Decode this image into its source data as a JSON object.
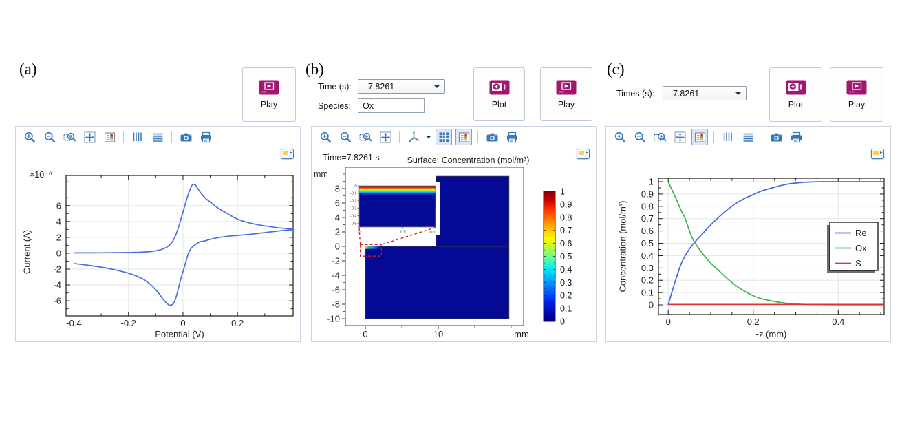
{
  "panels": {
    "a": {
      "label": "(a)",
      "play_button": "Play",
      "xlabel": "Potential (V)",
      "ylabel": "Current (A)",
      "y_multiplier": "×10⁻⁶",
      "toolbar": [
        "zoom-in",
        "zoom-out",
        "zoom-box",
        "zoom-extents",
        "color-legend",
        "x-grid",
        "y-grid",
        "image-snapshot",
        "print"
      ]
    },
    "b": {
      "label": "(b)",
      "time_label": "Time (s):",
      "time_value": "7.8261",
      "species_label": "Species:",
      "species_value": "Ox",
      "plot_button": "Plot",
      "play_button": "Play",
      "title_time": "Time=7.8261 s",
      "title_surface": "Surface: Concentration (mol/m³)",
      "unit_top": "mm",
      "toolbar": [
        "zoom-in",
        "zoom-out",
        "zoom-box",
        "zoom-extents",
        "default-3d-view",
        "grid",
        "color-legend",
        "image-snapshot",
        "print"
      ],
      "toolbar_selected": [
        "grid",
        "color-legend"
      ]
    },
    "c": {
      "label": "(c)",
      "times_label": "Times (s):",
      "times_value": "7.8261",
      "plot_button": "Plot",
      "play_button": "Play",
      "xlabel": "-z (mm)",
      "ylabel": "Concentration (mol/m³)",
      "toolbar": [
        "zoom-in",
        "zoom-out",
        "zoom-box",
        "zoom-extents",
        "color-legend",
        "x-grid",
        "y-grid",
        "image-snapshot",
        "print"
      ],
      "toolbar_selected": [
        "color-legend"
      ]
    }
  },
  "chart_data": [
    {
      "type": "line",
      "panel": "a",
      "title": "",
      "xlabel": "Potential (V)",
      "ylabel": "Current (A)",
      "y_scale_label": "×10⁻⁶",
      "xlim": [
        -0.429,
        0.404
      ],
      "ylim": [
        -7.9,
        9.8
      ],
      "xticks": [
        -0.4,
        -0.2,
        0,
        0.2
      ],
      "xminor": [
        -0.3,
        -0.1,
        0.1,
        0.3,
        0.4
      ],
      "yticks": [
        -6,
        -4,
        -2,
        0,
        2,
        4,
        6
      ],
      "yminor": [
        -7,
        -5,
        -3,
        -1,
        1,
        3,
        5,
        7,
        9
      ],
      "grid": true,
      "series": [
        {
          "name": "cyclic-voltammogram",
          "color": "#4b6fe0",
          "x": [
            -0.4,
            -0.35,
            -0.3,
            -0.25,
            -0.2,
            -0.16,
            -0.13,
            -0.11,
            -0.09,
            -0.075,
            -0.06,
            -0.05,
            -0.04,
            -0.03,
            -0.02,
            -0.01,
            0,
            0.01,
            0.02,
            0.028,
            0.035,
            0.045,
            0.055,
            0.07,
            0.085,
            0.1,
            0.12,
            0.14,
            0.16,
            0.18,
            0.2,
            0.23,
            0.26,
            0.29,
            0.32,
            0.35,
            0.38,
            0.404,
            0.404,
            0.37,
            0.34,
            0.3,
            0.26,
            0.22,
            0.19,
            0.16,
            0.13,
            0.1,
            0.08,
            0.063,
            0.05,
            0.04,
            0.03,
            0.02,
            0.01,
            0,
            -0.01,
            -0.02,
            -0.03,
            -0.038,
            -0.048,
            -0.06,
            -0.075,
            -0.09,
            -0.11,
            -0.13,
            -0.15,
            -0.18,
            -0.21,
            -0.25,
            -0.29,
            -0.33,
            -0.37,
            -0.4
          ],
          "y": [
            0.05,
            0.05,
            0.06,
            0.07,
            0.09,
            0.13,
            0.18,
            0.25,
            0.38,
            0.52,
            0.75,
            1.0,
            1.4,
            2.0,
            2.9,
            4.0,
            5.2,
            6.4,
            7.5,
            8.2,
            8.65,
            8.6,
            8.1,
            7.4,
            6.85,
            6.45,
            5.9,
            5.45,
            5.05,
            4.65,
            4.3,
            3.95,
            3.7,
            3.5,
            3.35,
            3.2,
            3.1,
            3.02,
            2.98,
            2.88,
            2.76,
            2.6,
            2.44,
            2.3,
            2.22,
            2.12,
            1.97,
            1.75,
            1.55,
            1.45,
            1.2,
            0.95,
            0.62,
            0,
            -1.15,
            -2.3,
            -3.5,
            -4.9,
            -6.0,
            -6.45,
            -6.55,
            -6.3,
            -5.7,
            -5.0,
            -4.25,
            -3.65,
            -3.2,
            -2.75,
            -2.42,
            -2.08,
            -1.82,
            -1.6,
            -1.42,
            -1.3
          ]
        }
      ]
    },
    {
      "type": "heatmap",
      "panel": "b",
      "title": "Surface: Concentration (mol/m³)",
      "time_annotation": "Time=7.8261 s",
      "unit": "mm",
      "xlim": [
        -2.74,
        21.7
      ],
      "ylim": [
        -10.95,
        10.95
      ],
      "xticks": [
        0,
        10
      ],
      "xminor": [
        5,
        15,
        20
      ],
      "yticks": [
        8,
        6,
        4,
        2,
        0,
        -2,
        -4,
        -6,
        -8,
        -10
      ],
      "yminor": [
        10,
        9,
        7,
        5,
        3,
        1,
        -1,
        -3,
        -5,
        -7,
        -9
      ],
      "domain_color": "#050a94",
      "domains": [
        {
          "x": [
            0,
            19.7
          ],
          "y": [
            -10,
            0
          ]
        },
        {
          "x": [
            9.7,
            19.7
          ],
          "y": [
            0,
            9.7
          ]
        }
      ],
      "boundary_layer": {
        "x": [
          0,
          2.1
        ],
        "y": [
          -0.35,
          0
        ],
        "stops": [
          [
            "#b8e46a",
            0
          ],
          [
            "#2fbf7f",
            0.2
          ],
          [
            "#1a7fd4",
            0.55
          ],
          [
            "#050a94",
            1
          ]
        ]
      },
      "inset": {
        "xlim": [
          0,
          0.87
        ],
        "ylim": [
          -0.55,
          0
        ],
        "xticks": [
          0,
          0.5
        ],
        "yticks": [
          0,
          -0.1,
          -0.2,
          -0.3,
          -0.4,
          -0.5
        ],
        "unit": "mm",
        "stops": [
          [
            "#7f0000",
            0
          ],
          [
            "#e80000",
            0.05
          ],
          [
            "#ff7300",
            0.1
          ],
          [
            "#ffd900",
            0.145
          ],
          [
            "#8dff3c",
            0.19
          ],
          [
            "#00ffd9",
            0.235
          ],
          [
            "#00a4ff",
            0.28
          ],
          [
            "#0033e0",
            0.33
          ],
          [
            "#050a94",
            0.4
          ],
          [
            "#050a94",
            1
          ]
        ]
      },
      "zoom_region": {
        "x": [
          -0.7,
          2.2
        ],
        "y": [
          -1.35,
          0.25
        ]
      },
      "colorbar": {
        "min": 0,
        "max": 1,
        "ticks": [
          1,
          0.9,
          0.8,
          0.7,
          0.6,
          0.5,
          0.4,
          0.3,
          0.2,
          0.1,
          0
        ],
        "stops": [
          [
            "#7f0000",
            0
          ],
          [
            "#ce0000",
            0.07
          ],
          [
            "#ff3b00",
            0.15
          ],
          [
            "#ff8400",
            0.23
          ],
          [
            "#ffc800",
            0.3
          ],
          [
            "#fff600",
            0.36
          ],
          [
            "#b4f63c",
            0.44
          ],
          [
            "#57fba7",
            0.52
          ],
          [
            "#00e8f0",
            0.6
          ],
          [
            "#00a6ff",
            0.68
          ],
          [
            "#0064ff",
            0.76
          ],
          [
            "#0024e4",
            0.85
          ],
          [
            "#0008b4",
            0.93
          ],
          [
            "#000080",
            1
          ]
        ]
      }
    },
    {
      "type": "line",
      "panel": "c",
      "xlabel": "-z (mm)",
      "ylabel": "Concentration (mol/m³)",
      "xlim": [
        -0.023,
        0.508
      ],
      "ylim": [
        -0.078,
        1.028
      ],
      "xticks": [
        0,
        0.2,
        0.4
      ],
      "xminor": [
        0.05,
        0.1,
        0.15,
        0.25,
        0.3,
        0.35,
        0.45,
        0.5
      ],
      "yticks": [
        0,
        0.1,
        0.2,
        0.3,
        0.4,
        0.5,
        0.6,
        0.7,
        0.8,
        0.9,
        1
      ],
      "yminor": [
        0.05,
        0.15,
        0.25,
        0.35,
        0.45,
        0.55,
        0.65,
        0.75,
        0.85,
        0.95
      ],
      "grid": true,
      "legend": {
        "position": "right",
        "entries": [
          "Re",
          "Ox",
          "S"
        ]
      },
      "series": [
        {
          "name": "Re",
          "color": "#4169e1",
          "x": [
            0,
            0.01,
            0.02,
            0.03,
            0.04,
            0.05,
            0.06,
            0.08,
            0.1,
            0.12,
            0.14,
            0.16,
            0.18,
            0.2,
            0.22,
            0.25,
            0.28,
            0.32,
            0.36,
            0.4,
            0.45,
            0.508
          ],
          "y": [
            0,
            0.12,
            0.23,
            0.33,
            0.4,
            0.455,
            0.5,
            0.575,
            0.65,
            0.715,
            0.775,
            0.825,
            0.865,
            0.895,
            0.925,
            0.955,
            0.98,
            0.995,
            1,
            1,
            1,
            1
          ]
        },
        {
          "name": "Ox",
          "color": "#3bb44a",
          "x": [
            0,
            0.01,
            0.02,
            0.03,
            0.04,
            0.05,
            0.06,
            0.08,
            0.1,
            0.12,
            0.14,
            0.16,
            0.18,
            0.2,
            0.22,
            0.25,
            0.28,
            0.32,
            0.36,
            0.4,
            0.45,
            0.508
          ],
          "y": [
            1,
            0.925,
            0.85,
            0.77,
            0.7,
            0.6,
            0.52,
            0.42,
            0.34,
            0.275,
            0.21,
            0.155,
            0.11,
            0.075,
            0.05,
            0.028,
            0.012,
            0.004,
            0.002,
            0.001,
            0.001,
            0.001
          ]
        },
        {
          "name": "S",
          "color": "#e03232",
          "x": [
            0,
            0.1,
            0.2,
            0.3,
            0.4,
            0.508
          ],
          "y": [
            0.004,
            0.004,
            0.004,
            0.004,
            0.004,
            0.004
          ]
        }
      ]
    }
  ]
}
